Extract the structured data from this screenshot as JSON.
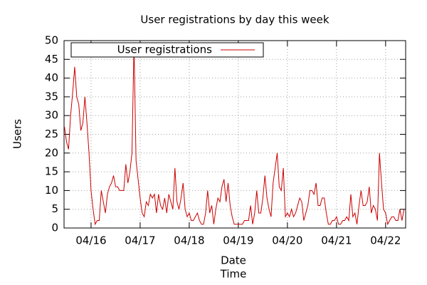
{
  "chart_data": {
    "type": "line",
    "title": "User registrations by day this week",
    "ylabel": "Users",
    "xlabel": [
      "Date",
      "Time"
    ],
    "x": [
      -13,
      -12,
      -11,
      -10,
      -9,
      -8,
      -7,
      -6,
      -5,
      -4,
      -3,
      -2,
      -1,
      0,
      1,
      2,
      3,
      4,
      5,
      6,
      7,
      8,
      9,
      10,
      11,
      12,
      13,
      14,
      15,
      16,
      17,
      18,
      19,
      20,
      21,
      22,
      23,
      24,
      25,
      26,
      27,
      28,
      29,
      30,
      31,
      32,
      33,
      34,
      35,
      36,
      37,
      38,
      39,
      40,
      41,
      42,
      43,
      44,
      45,
      46,
      47,
      48,
      49,
      50,
      51,
      52,
      53,
      54,
      55,
      56,
      57,
      58,
      59,
      60,
      61,
      62,
      63,
      64,
      65,
      66,
      67,
      68,
      69,
      70,
      71,
      72,
      73,
      74,
      75,
      76,
      77,
      78,
      79,
      80,
      81,
      82,
      83,
      84,
      85,
      86,
      87,
      88,
      89,
      90,
      91,
      92,
      93,
      94,
      95,
      96,
      97,
      98,
      99,
      100,
      101,
      102,
      103,
      104,
      105,
      106,
      107,
      108,
      109,
      110,
      111,
      112,
      113,
      114,
      115,
      116,
      117,
      118,
      119,
      120,
      121,
      122,
      123,
      124,
      125,
      126,
      127,
      128,
      129,
      130,
      131,
      132,
      133,
      134,
      135,
      136,
      137,
      138,
      139,
      140,
      141,
      142,
      143,
      144,
      145,
      146,
      147,
      148,
      149,
      150,
      151,
      152,
      153
    ],
    "series": [
      {
        "name": "User registrations",
        "color": "#cc0000",
        "values": [
          27,
          23,
          21,
          30,
          36,
          43,
          35,
          33,
          26,
          28,
          35,
          28,
          20,
          10,
          5,
          1,
          2,
          2,
          10,
          7,
          4,
          9,
          11,
          12,
          14,
          11,
          11,
          10,
          10,
          10,
          17,
          12,
          15,
          20,
          49,
          18,
          13,
          8,
          4,
          3,
          7,
          6,
          9,
          8,
          9,
          4,
          9,
          6,
          5,
          8,
          4,
          9,
          7,
          5,
          16,
          7,
          5,
          8,
          12,
          5,
          3,
          4,
          2,
          2,
          3,
          4,
          2,
          1,
          1,
          4,
          10,
          4,
          6,
          1,
          5,
          8,
          7,
          11,
          13,
          7,
          12,
          6,
          3,
          1,
          1,
          1,
          1,
          1,
          2,
          2,
          2,
          6,
          1,
          4,
          10,
          4,
          4,
          8,
          14,
          8,
          5,
          3,
          12,
          16,
          20,
          11,
          10,
          16,
          3,
          4,
          3,
          5,
          3,
          4,
          6,
          8,
          7,
          2,
          4,
          6,
          10,
          10,
          9,
          12,
          6,
          6,
          8,
          8,
          4,
          1,
          1,
          2,
          2,
          3,
          1,
          1,
          2,
          2,
          3,
          2,
          9,
          3,
          4,
          1,
          6,
          10,
          6,
          6,
          7,
          11,
          4,
          6,
          5,
          2,
          20,
          12,
          5,
          4,
          1,
          2,
          3,
          3,
          2,
          2,
          5,
          2,
          5
        ]
      }
    ],
    "xlim": [
      -13.2,
      153.8
    ],
    "xticks": [
      {
        "value": 0,
        "label": "04/16"
      },
      {
        "value": 24,
        "label": "04/17"
      },
      {
        "value": 48,
        "label": "04/18"
      },
      {
        "value": 72,
        "label": "04/19"
      },
      {
        "value": 96,
        "label": "04/20"
      },
      {
        "value": 120,
        "label": "04/21"
      },
      {
        "value": 144,
        "label": "04/22"
      }
    ],
    "ylim": [
      0,
      50
    ],
    "yticks": [
      0,
      5,
      10,
      15,
      20,
      25,
      30,
      35,
      40,
      45,
      50
    ],
    "grid": true,
    "legend": "top-left"
  }
}
